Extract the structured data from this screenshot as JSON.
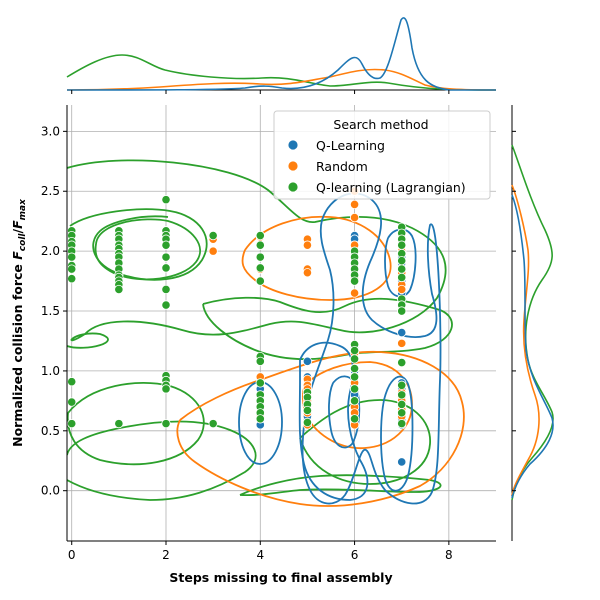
{
  "chart_data": {
    "type": "scatter",
    "title": "",
    "xlabel": "Steps missing to final assembly",
    "ylabel_main": "Normalized collision force ",
    "ylabel_italic": "F",
    "ylabel_sub1": "coll",
    "ylabel_slash": "/",
    "ylabel_sub2": "max",
    "xlim": [
      -0.1,
      9.0
    ],
    "ylim": [
      -0.42,
      3.22
    ],
    "xticks": [
      "0",
      "2",
      "4",
      "6",
      "8"
    ],
    "xtick_values": [
      0,
      2,
      4,
      6,
      8
    ],
    "yticks": [
      "0.0",
      "0.5",
      "1.0",
      "1.5",
      "2.0",
      "2.5",
      "3.0"
    ],
    "ytick_values": [
      0.0,
      0.5,
      1.0,
      1.5,
      2.0,
      2.5,
      3.0
    ],
    "grid": true,
    "legend_title": "Search method",
    "legend_placement": "top-right",
    "marginals": "kde",
    "series": [
      {
        "name": "Q-Learning",
        "color": "#1f77b4",
        "points": [
          [
            4,
            0.55
          ],
          [
            4,
            0.6
          ],
          [
            4,
            0.65
          ],
          [
            4,
            0.7
          ],
          [
            4,
            0.75
          ],
          [
            4,
            0.8
          ],
          [
            4,
            0.85
          ],
          [
            4,
            0.9
          ],
          [
            5,
            1.08
          ],
          [
            5,
            0.95
          ],
          [
            5,
            0.85
          ],
          [
            5,
            0.62
          ],
          [
            5,
            0.57
          ],
          [
            6,
            2.13
          ],
          [
            6,
            2.1
          ],
          [
            6,
            2.05
          ],
          [
            6,
            2.0
          ],
          [
            6,
            1.95
          ],
          [
            6,
            1.9
          ],
          [
            6,
            1.85
          ],
          [
            6,
            1.8
          ],
          [
            6,
            1.75
          ],
          [
            6,
            1.2
          ],
          [
            6,
            1.1
          ],
          [
            6,
            1.0
          ],
          [
            6,
            0.95
          ],
          [
            6,
            0.9
          ],
          [
            6,
            0.85
          ],
          [
            6,
            0.8
          ],
          [
            6,
            0.75
          ],
          [
            6,
            0.7
          ],
          [
            6,
            0.65
          ],
          [
            6,
            0.6
          ],
          [
            6,
            0.55
          ],
          [
            7,
            2.15
          ],
          [
            7,
            2.1
          ],
          [
            7,
            2.05
          ],
          [
            7,
            2.0
          ],
          [
            7,
            1.95
          ],
          [
            7,
            1.9
          ],
          [
            7,
            1.85
          ],
          [
            7,
            1.8
          ],
          [
            7,
            1.75
          ],
          [
            7,
            1.7
          ],
          [
            7,
            1.65
          ],
          [
            7,
            1.6
          ],
          [
            7,
            1.55
          ],
          [
            7,
            1.5
          ],
          [
            7,
            1.32
          ],
          [
            7,
            1.23
          ],
          [
            7,
            1.07
          ],
          [
            7,
            0.9
          ],
          [
            7,
            0.85
          ],
          [
            7,
            0.8
          ],
          [
            7,
            0.75
          ],
          [
            7,
            0.7
          ],
          [
            7,
            0.65
          ],
          [
            7,
            0.6
          ],
          [
            7,
            0.55
          ],
          [
            7,
            0.24
          ]
        ]
      },
      {
        "name": "Random",
        "color": "#ff7f0e",
        "points": [
          [
            3,
            2.1
          ],
          [
            3,
            2.0
          ],
          [
            4,
            2.12
          ],
          [
            4,
            2.05
          ],
          [
            4,
            1.85
          ],
          [
            4,
            1.75
          ],
          [
            4,
            0.95
          ],
          [
            4,
            0.62
          ],
          [
            5,
            2.1
          ],
          [
            5,
            2.05
          ],
          [
            5,
            1.85
          ],
          [
            5,
            1.82
          ],
          [
            5,
            0.93
          ],
          [
            5,
            0.88
          ],
          [
            5,
            0.85
          ],
          [
            5,
            0.8
          ],
          [
            5,
            0.75
          ],
          [
            5,
            0.72
          ],
          [
            5,
            0.65
          ],
          [
            5,
            0.55
          ],
          [
            6,
            2.5
          ],
          [
            6,
            2.39
          ],
          [
            6,
            2.28
          ],
          [
            6,
            2.05
          ],
          [
            6,
            1.95
          ],
          [
            6,
            1.85
          ],
          [
            6,
            1.78
          ],
          [
            6,
            1.65
          ],
          [
            6,
            1.22
          ],
          [
            6,
            1.15
          ],
          [
            6,
            1.02
          ],
          [
            6,
            0.95
          ],
          [
            6,
            0.9
          ],
          [
            6,
            0.85
          ],
          [
            6,
            0.75
          ],
          [
            6,
            0.7
          ],
          [
            6,
            0.65
          ],
          [
            6,
            0.6
          ],
          [
            6,
            0.55
          ],
          [
            7,
            2.1
          ],
          [
            7,
            2.0
          ],
          [
            7,
            1.92
          ],
          [
            7,
            1.85
          ],
          [
            7,
            1.82
          ],
          [
            7,
            1.72
          ],
          [
            7,
            1.68
          ],
          [
            7,
            1.55
          ],
          [
            7,
            1.23
          ],
          [
            7,
            0.82
          ],
          [
            7,
            0.8
          ],
          [
            7,
            0.78
          ],
          [
            7,
            0.75
          ],
          [
            7,
            0.72
          ],
          [
            7,
            0.68
          ],
          [
            7,
            0.62
          ]
        ]
      },
      {
        "name": "Q-learning (Lagrangian)",
        "color": "#2ca02c",
        "points": [
          [
            0,
            2.17
          ],
          [
            0,
            2.13
          ],
          [
            0,
            2.08
          ],
          [
            0,
            2.05
          ],
          [
            0,
            2.0
          ],
          [
            0,
            1.95
          ],
          [
            0,
            1.88
          ],
          [
            0,
            1.85
          ],
          [
            0,
            1.77
          ],
          [
            0,
            0.91
          ],
          [
            0,
            0.74
          ],
          [
            0,
            0.56
          ],
          [
            1,
            2.17
          ],
          [
            1,
            2.13
          ],
          [
            1,
            2.1
          ],
          [
            1,
            2.05
          ],
          [
            1,
            2.02
          ],
          [
            1,
            1.98
          ],
          [
            1,
            1.95
          ],
          [
            1,
            1.9
          ],
          [
            1,
            1.85
          ],
          [
            1,
            1.8
          ],
          [
            1,
            1.78
          ],
          [
            1,
            1.75
          ],
          [
            1,
            1.72
          ],
          [
            1,
            1.68
          ],
          [
            1,
            0.56
          ],
          [
            2,
            2.43
          ],
          [
            2,
            2.17
          ],
          [
            2,
            2.13
          ],
          [
            2,
            2.1
          ],
          [
            2,
            2.05
          ],
          [
            2,
            1.95
          ],
          [
            2,
            1.86
          ],
          [
            2,
            1.68
          ],
          [
            2,
            1.55
          ],
          [
            2,
            0.96
          ],
          [
            2,
            0.92
          ],
          [
            2,
            0.88
          ],
          [
            2,
            0.85
          ],
          [
            2,
            0.56
          ],
          [
            3,
            2.13
          ],
          [
            3,
            0.56
          ],
          [
            4,
            2.13
          ],
          [
            4,
            2.05
          ],
          [
            4,
            1.95
          ],
          [
            4,
            1.86
          ],
          [
            4,
            1.75
          ],
          [
            4,
            1.12
          ],
          [
            4,
            1.08
          ],
          [
            4,
            0.9
          ],
          [
            4,
            0.8
          ],
          [
            4,
            0.75
          ],
          [
            4,
            0.7
          ],
          [
            4,
            0.65
          ],
          [
            4,
            0.6
          ],
          [
            5,
            0.82
          ],
          [
            5,
            0.78
          ],
          [
            5,
            0.72
          ],
          [
            5,
            0.67
          ],
          [
            5,
            0.57
          ],
          [
            6,
            2.0
          ],
          [
            6,
            1.95
          ],
          [
            6,
            1.9
          ],
          [
            6,
            1.85
          ],
          [
            6,
            1.8
          ],
          [
            6,
            1.75
          ],
          [
            6,
            1.22
          ],
          [
            6,
            1.17
          ],
          [
            6,
            1.1
          ],
          [
            6,
            1.02
          ],
          [
            6,
            0.95
          ],
          [
            6,
            0.85
          ],
          [
            6,
            0.75
          ],
          [
            6,
            0.6
          ],
          [
            7,
            2.2
          ],
          [
            7,
            2.15
          ],
          [
            7,
            2.1
          ],
          [
            7,
            2.05
          ],
          [
            7,
            1.98
          ],
          [
            7,
            1.92
          ],
          [
            7,
            1.85
          ],
          [
            7,
            1.78
          ],
          [
            7,
            1.6
          ],
          [
            7,
            1.55
          ],
          [
            7,
            1.5
          ],
          [
            7,
            1.07
          ],
          [
            7,
            0.88
          ],
          [
            7,
            0.8
          ],
          [
            7,
            0.72
          ],
          [
            7,
            0.65
          ],
          [
            7,
            0.56
          ]
        ]
      }
    ]
  }
}
